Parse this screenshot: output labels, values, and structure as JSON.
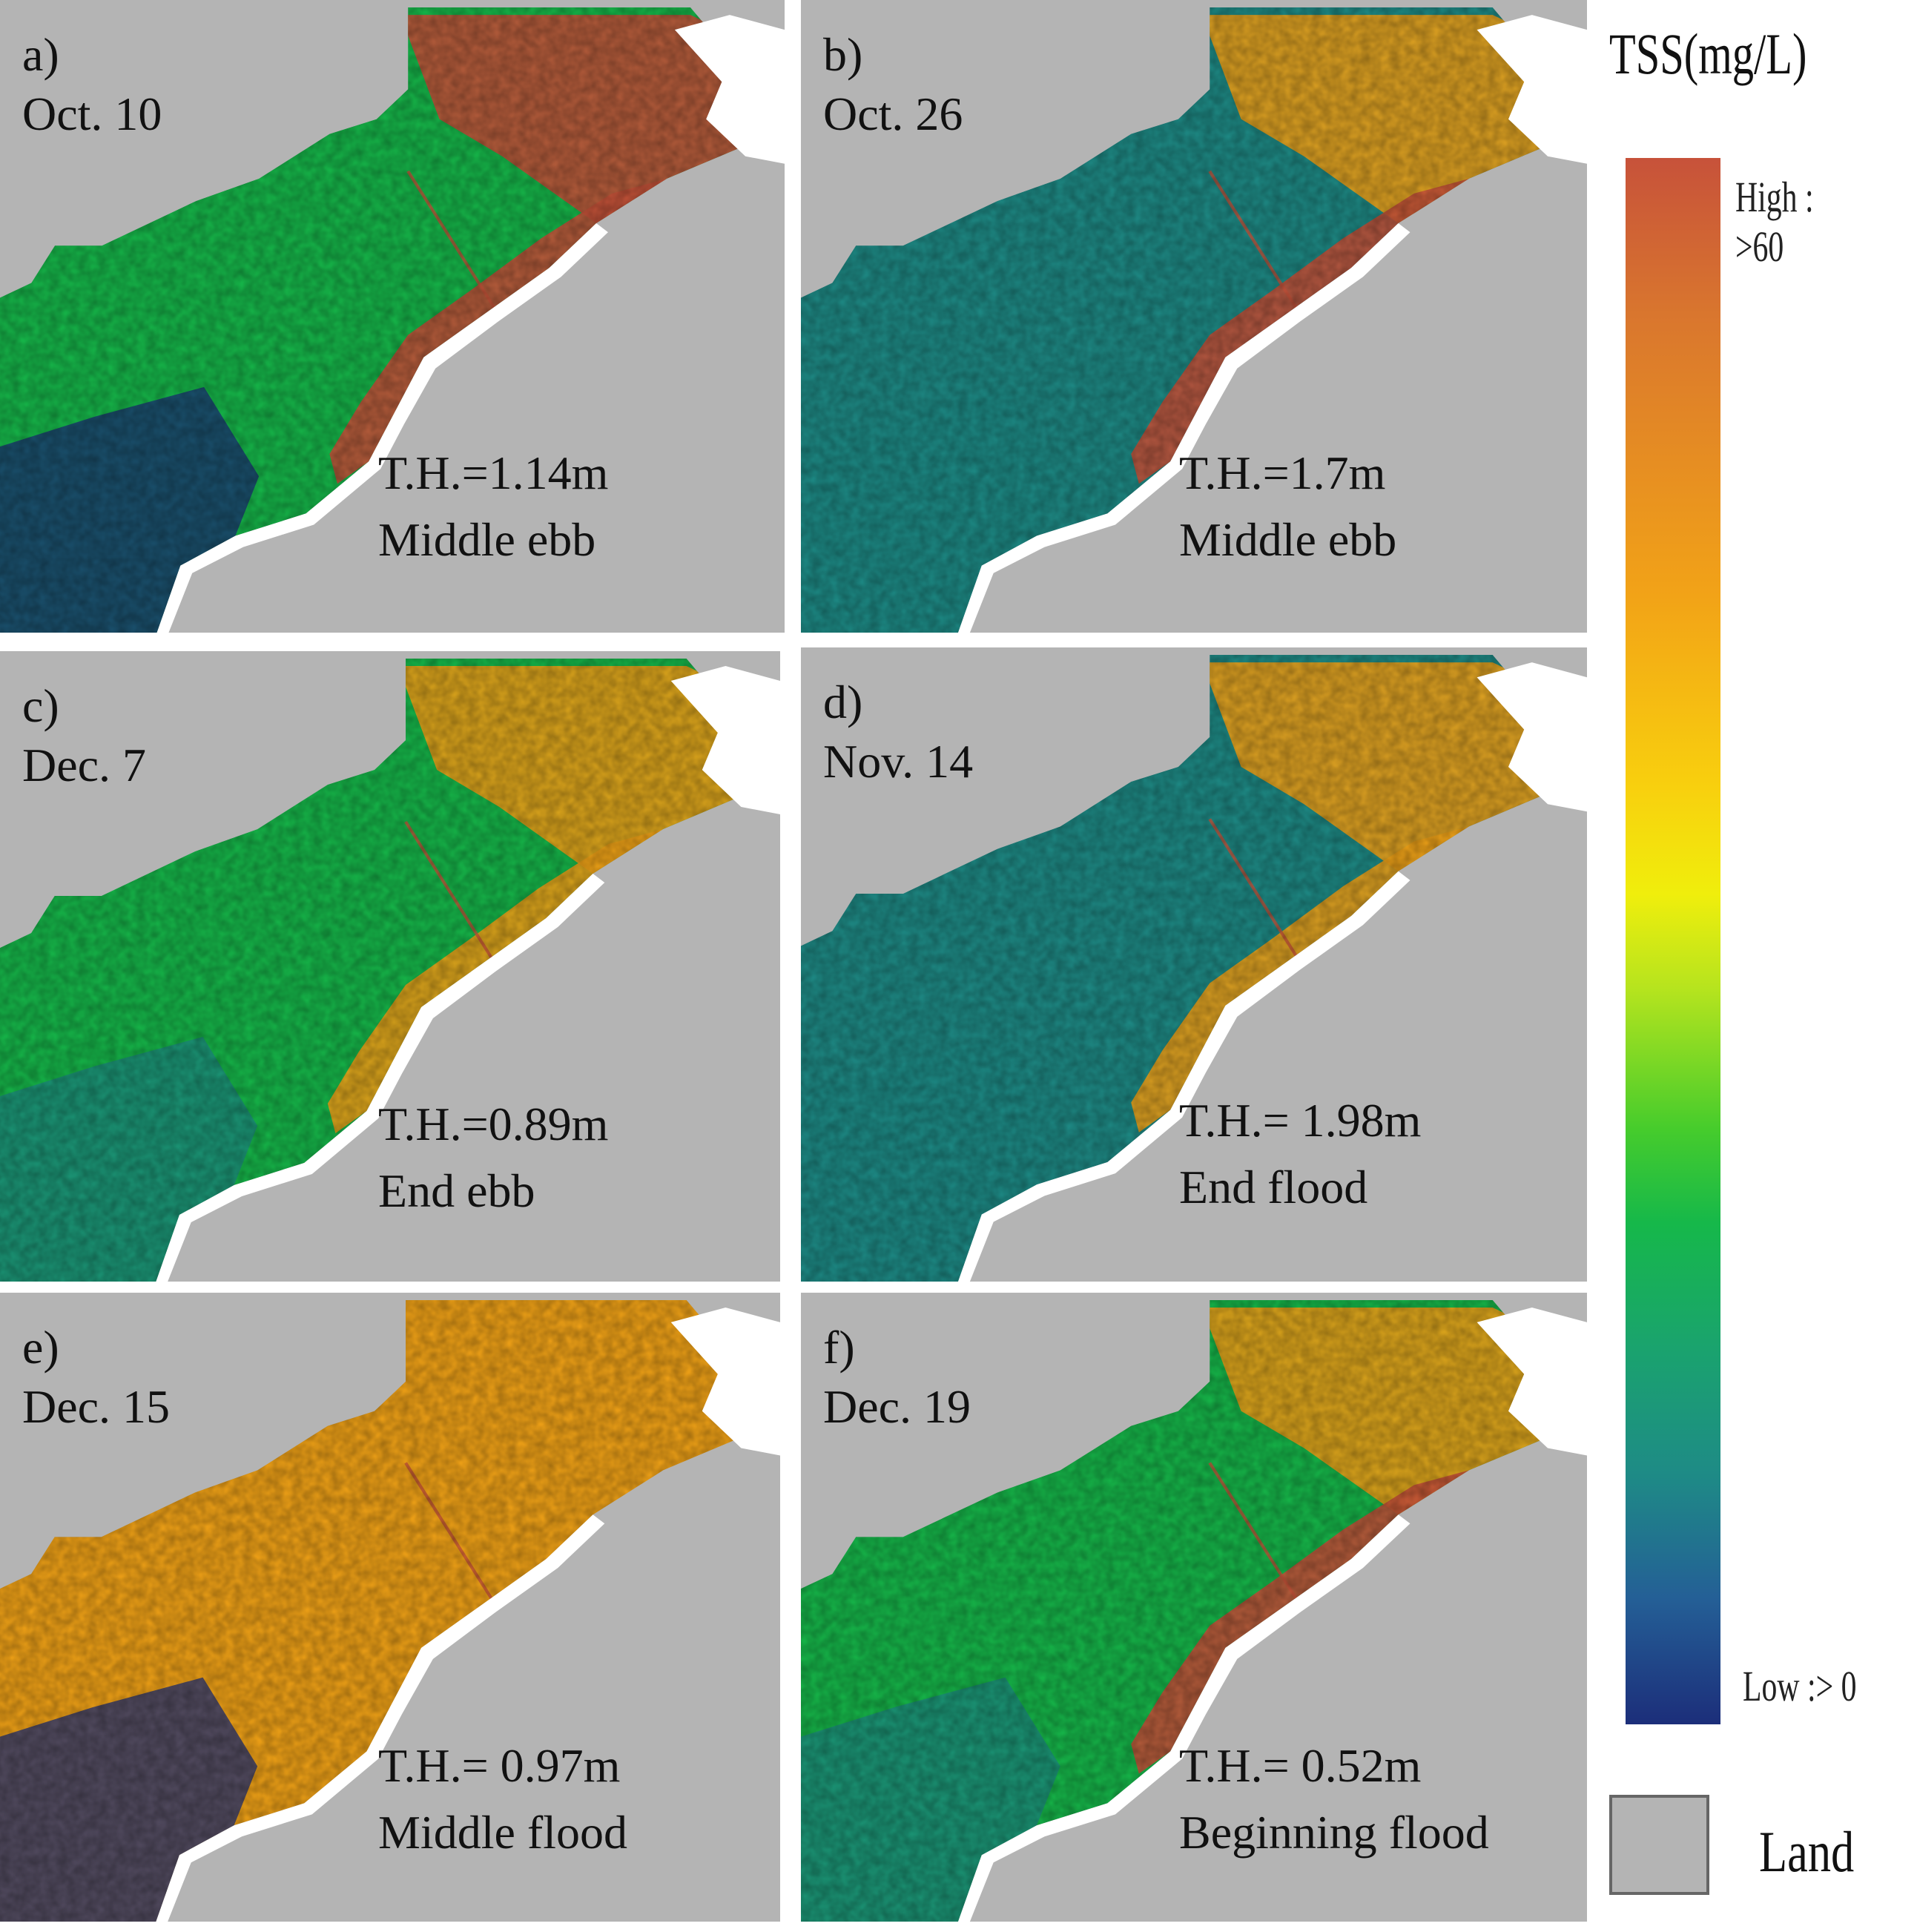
{
  "figure": {
    "legend": {
      "title": "TSS(mg/L)",
      "high_label": "High : >60",
      "low_label": "Low :> 0",
      "land_label": "Land",
      "colors": {
        "land": "#b4b4b4",
        "high": "#c7523a",
        "orange": "#f2a317",
        "yellow": "#f0ee0c",
        "green": "#16b84a",
        "teal": "#1e8b86",
        "low": "#1c2e7a",
        "white_mask": "#ffffff"
      }
    },
    "panels": [
      {
        "letter": "a)",
        "date": "Oct. 10",
        "tidal_height": "T.H.=1.14m",
        "tide_phase": "Middle ebb",
        "dominant": "green",
        "northeast": "high",
        "coast": "high",
        "southwest": "low"
      },
      {
        "letter": "b)",
        "date": "Oct. 26",
        "tidal_height": "T.H.=1.7m",
        "tide_phase": "Middle ebb",
        "dominant": "teal",
        "northeast": "orange",
        "coast": "high",
        "southwest": "teal"
      },
      {
        "letter": "c)",
        "date": "Dec. 7",
        "tidal_height": "T.H.=0.89m",
        "tide_phase": "End ebb",
        "dominant": "green",
        "northeast": "orange",
        "coast": "orange",
        "southwest": "teal"
      },
      {
        "letter": "d)",
        "date": "Nov. 14",
        "tidal_height": "T.H.= 1.98m",
        "tide_phase": "End flood",
        "dominant": "teal",
        "northeast": "orange",
        "coast": "orange",
        "southwest": "teal"
      },
      {
        "letter": "e)",
        "date": "Dec. 15",
        "tidal_height": "T.H.= 0.97m",
        "tide_phase": "Middle flood",
        "dominant": "orange",
        "northeast": "orange",
        "coast": "orange",
        "southwest": "low"
      },
      {
        "letter": "f)",
        "date": "Dec. 19",
        "tidal_height": "T.H.= 0.52m",
        "tide_phase": "Beginning flood",
        "dominant": "green",
        "northeast": "orange",
        "coast": "high",
        "southwest": "teal"
      }
    ]
  }
}
